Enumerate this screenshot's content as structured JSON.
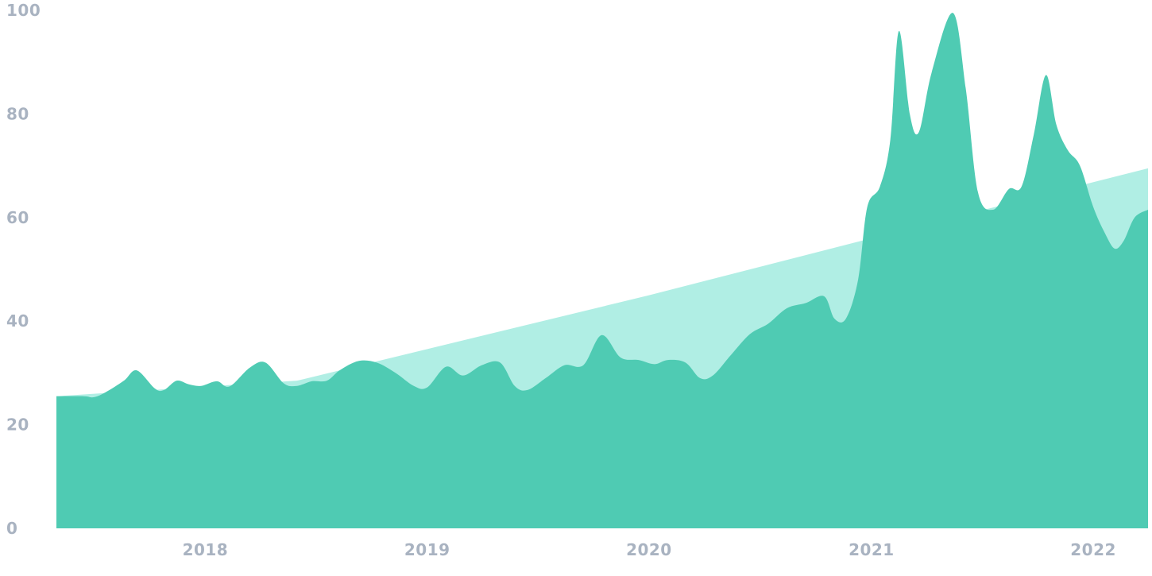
{
  "chart_data": {
    "type": "area",
    "title": "",
    "xlabel": "",
    "ylabel": "",
    "ylim": [
      0,
      100
    ],
    "xlim": [
      "2017-05-01",
      "2022-04-01"
    ],
    "grid": false,
    "legend": "none",
    "y_ticks": [
      "0",
      "20",
      "40",
      "60",
      "80",
      "100"
    ],
    "x_ticks": [
      {
        "label": "2018",
        "date": "2018-01-01"
      },
      {
        "label": "2019",
        "date": "2019-01-01"
      },
      {
        "label": "2020",
        "date": "2020-01-01"
      },
      {
        "label": "2021",
        "date": "2021-01-01"
      },
      {
        "label": "2022",
        "date": "2022-01-01"
      }
    ],
    "series": [
      {
        "color": "#b0eee4",
        "style": "trend",
        "points": [
          [
            "2017-05-01",
            25.5
          ],
          [
            "2018-06-01",
            28.5
          ],
          [
            "2020-01-01",
            45
          ],
          [
            "2021-01-01",
            56
          ],
          [
            "2022-04-01",
            69.5
          ]
        ]
      },
      {
        "color": "#4fcbb3",
        "style": "actual",
        "points": [
          [
            "2017-05-01",
            25.5
          ],
          [
            "2017-06-15",
            25.5
          ],
          [
            "2017-07-01",
            25.3
          ],
          [
            "2017-07-20",
            26.2
          ],
          [
            "2017-08-20",
            28.5
          ],
          [
            "2017-09-10",
            30.5
          ],
          [
            "2017-10-10",
            27.0
          ],
          [
            "2017-10-25",
            26.7
          ],
          [
            "2017-11-15",
            28.5
          ],
          [
            "2017-12-05",
            27.8
          ],
          [
            "2017-12-25",
            27.5
          ],
          [
            "2018-01-20",
            28.4
          ],
          [
            "2018-02-10",
            27.4
          ],
          [
            "2018-03-15",
            31.0
          ],
          [
            "2018-04-10",
            32.0
          ],
          [
            "2018-05-10",
            28.0
          ],
          [
            "2018-06-01",
            27.5
          ],
          [
            "2018-06-25",
            28.4
          ],
          [
            "2018-07-20",
            28.5
          ],
          [
            "2018-08-10",
            30.5
          ],
          [
            "2018-09-10",
            32.3
          ],
          [
            "2018-10-10",
            32.0
          ],
          [
            "2018-11-10",
            30.0
          ],
          [
            "2018-12-10",
            27.5
          ],
          [
            "2019-01-01",
            27.2
          ],
          [
            "2019-02-01",
            31.2
          ],
          [
            "2019-03-01",
            29.5
          ],
          [
            "2019-04-01",
            31.5
          ],
          [
            "2019-05-01",
            32.0
          ],
          [
            "2019-05-25",
            27.5
          ],
          [
            "2019-06-15",
            26.7
          ],
          [
            "2019-07-15",
            29.0
          ],
          [
            "2019-08-15",
            31.5
          ],
          [
            "2019-09-15",
            31.5
          ],
          [
            "2019-10-15",
            37.3
          ],
          [
            "2019-11-15",
            33.0
          ],
          [
            "2019-12-15",
            32.5
          ],
          [
            "2020-01-10",
            31.7
          ],
          [
            "2020-02-01",
            32.5
          ],
          [
            "2020-03-01",
            32.0
          ],
          [
            "2020-03-25",
            29.0
          ],
          [
            "2020-04-15",
            29.5
          ],
          [
            "2020-05-15",
            33.5
          ],
          [
            "2020-06-15",
            37.5
          ],
          [
            "2020-07-15",
            39.5
          ],
          [
            "2020-08-15",
            42.5
          ],
          [
            "2020-09-15",
            43.5
          ],
          [
            "2020-10-15",
            44.8
          ],
          [
            "2020-11-01",
            40.5
          ],
          [
            "2020-11-20",
            40.5
          ],
          [
            "2020-12-10",
            48.0
          ],
          [
            "2020-12-25",
            62.0
          ],
          [
            "2021-01-15",
            66.0
          ],
          [
            "2021-02-01",
            75.0
          ],
          [
            "2021-02-15",
            96.0
          ],
          [
            "2021-03-05",
            80.0
          ],
          [
            "2021-03-20",
            76.5
          ],
          [
            "2021-04-10",
            88.0
          ],
          [
            "2021-05-15",
            99.5
          ],
          [
            "2021-06-05",
            85.0
          ],
          [
            "2021-06-25",
            65.0
          ],
          [
            "2021-07-20",
            61.5
          ],
          [
            "2021-08-15",
            65.5
          ],
          [
            "2021-09-05",
            66.0
          ],
          [
            "2021-09-25",
            76.0
          ],
          [
            "2021-10-15",
            87.5
          ],
          [
            "2021-11-01",
            78.0
          ],
          [
            "2021-11-20",
            73.0
          ],
          [
            "2021-12-10",
            70.0
          ],
          [
            "2022-01-01",
            62.0
          ],
          [
            "2022-01-20",
            57.0
          ],
          [
            "2022-02-05",
            54.0
          ],
          [
            "2022-02-20",
            55.5
          ],
          [
            "2022-03-10",
            60.0
          ],
          [
            "2022-04-01",
            61.5
          ]
        ]
      }
    ],
    "colors": {
      "tick_text": "#a9b3c1"
    }
  }
}
